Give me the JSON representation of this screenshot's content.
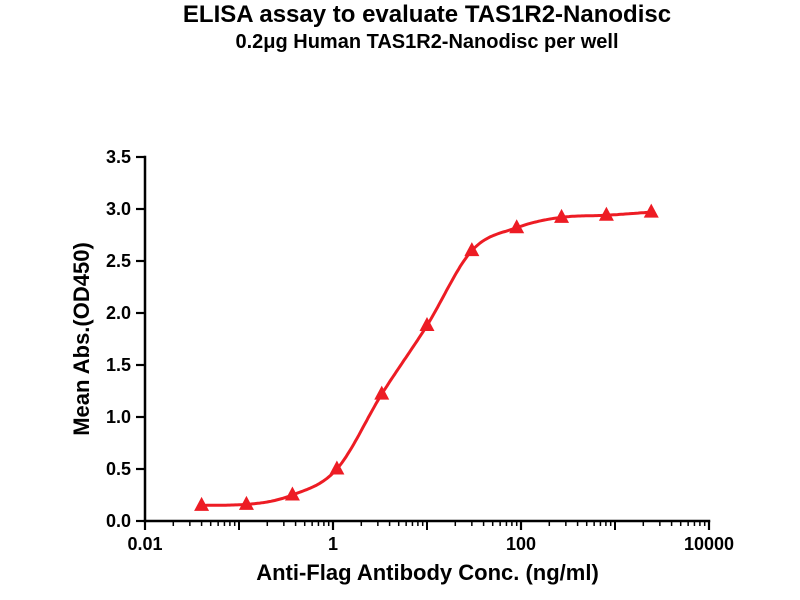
{
  "chart_data": {
    "type": "line",
    "title": "ELISA assay to evaluate TAS1R2-Nanodisc",
    "subtitle": "0.2μg Human TAS1R2-Nanodisc per well",
    "xlabel": "Anti-Flag Antibody Conc. (ng/ml)",
    "ylabel": "Mean Abs.(OD450)",
    "x_scale": "log",
    "xlim": [
      0.01,
      10000
    ],
    "ylim": [
      0,
      3.5
    ],
    "x_major_ticks": [
      0.01,
      1,
      100,
      10000
    ],
    "x_tick_labels": [
      "0.01",
      "1",
      "100",
      "10000"
    ],
    "y_ticks": [
      0,
      0.5,
      1,
      1.5,
      2,
      2.5,
      3,
      3.5
    ],
    "y_tick_labels": [
      "0.0",
      "0.5",
      "1.0",
      "1.5",
      "2.0",
      "2.5",
      "3.0",
      "3.5"
    ],
    "grid": false,
    "legend": "none",
    "curve_color": "#ed1c24",
    "axis_color": "#000000",
    "series": [
      {
        "name": "TAS1R2-Nanodisc",
        "marker": "triangle",
        "color": "#ed1c24",
        "x": [
          0.04,
          0.12,
          0.37,
          1.1,
          3.3,
          10,
          30,
          90,
          270,
          810,
          2430
        ],
        "y": [
          0.15,
          0.16,
          0.25,
          0.5,
          1.22,
          1.88,
          2.6,
          2.82,
          2.92,
          2.94,
          2.97
        ]
      }
    ]
  }
}
